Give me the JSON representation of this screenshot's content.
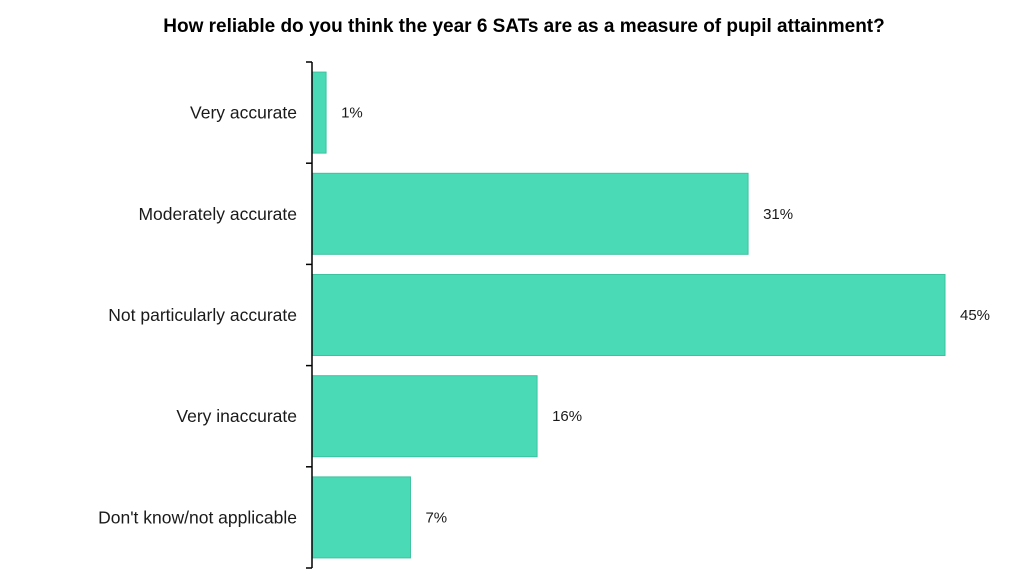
{
  "chart_data": {
    "type": "bar",
    "orientation": "horizontal",
    "title": "How reliable do you think the year 6 SATs are as a measure of pupil attainment?",
    "categories": [
      "Very accurate",
      "Moderately accurate",
      "Not particularly accurate",
      "Very inaccurate",
      "Don't know/not applicable"
    ],
    "values": [
      1,
      31,
      45,
      16,
      7
    ],
    "value_labels": [
      "1%",
      "31%",
      "45%",
      "16%",
      "7%"
    ],
    "unit": "%",
    "xlim": [
      0,
      45
    ],
    "grid": false,
    "bar_color": "#4ADBB6",
    "bar_edge_color": "#3CC29F"
  }
}
